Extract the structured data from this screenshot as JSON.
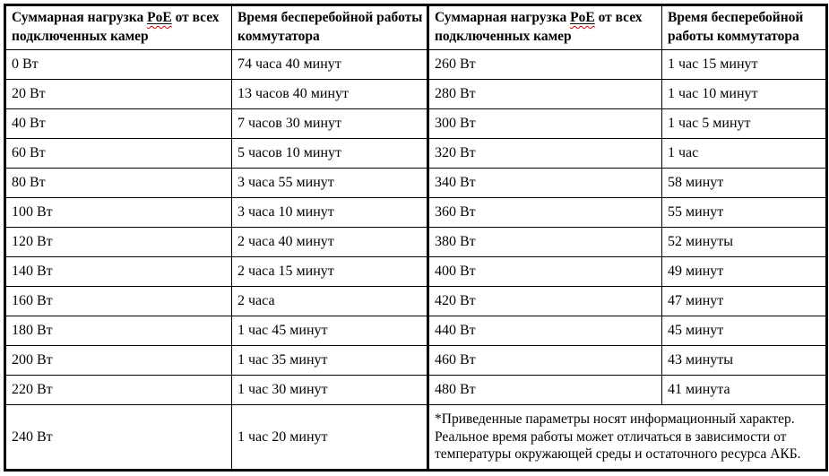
{
  "colors": {
    "ink": "#000000",
    "paper": "#ffffff",
    "spellcheck_squiggle": "#e00000"
  },
  "table": {
    "headers": {
      "load_prefix": "Суммарная нагрузка ",
      "load_term": "PoE",
      "load_suffix": " от всех\nподключенных камер",
      "uptime_left": "Время бесперебойной работы\nкоммутатора",
      "uptime_right": "Время бесперебойной\nработы коммутатора"
    },
    "rows": [
      {
        "l_load": "0 Вт",
        "l_time": "74 часа 40 минут",
        "r_load": "260 Вт",
        "r_time": "1 час 15 минут"
      },
      {
        "l_load": "20 Вт",
        "l_time": "13 часов 40 минут",
        "r_load": "280 Вт",
        "r_time": "1 час 10 минут"
      },
      {
        "l_load": "40 Вт",
        "l_time": "7 часов 30 минут",
        "r_load": "300 Вт",
        "r_time": "1 час 5 минут"
      },
      {
        "l_load": "60 Вт",
        "l_time": "5 часов 10 минут",
        "r_load": "320 Вт",
        "r_time": "1 час"
      },
      {
        "l_load": "80 Вт",
        "l_time": "3 часа 55 минут",
        "r_load": "340 Вт",
        "r_time": "58 минут"
      },
      {
        "l_load": "100 Вт",
        "l_time": "3 часа 10 минут",
        "r_load": "360 Вт",
        "r_time": "55 минут"
      },
      {
        "l_load": "120 Вт",
        "l_time": "2 часа 40 минут",
        "r_load": "380 Вт",
        "r_time": "52 минуты"
      },
      {
        "l_load": "140 Вт",
        "l_time": "2 часа 15 минут",
        "r_load": "400 Вт",
        "r_time": "49 минут"
      },
      {
        "l_load": "160 Вт",
        "l_time": "2 часа",
        "r_load": "420 Вт",
        "r_time": "47 минут"
      },
      {
        "l_load": "180 Вт",
        "l_time": "1 час 45 минут",
        "r_load": "440 Вт",
        "r_time": "45 минут"
      },
      {
        "l_load": "200 Вт",
        "l_time": "1 час 35 минут",
        "r_load": "460 Вт",
        "r_time": "43 минуты"
      },
      {
        "l_load": "220 Вт",
        "l_time": "1 час 30 минут",
        "r_load": "480 Вт",
        "r_time": "41 минута"
      }
    ],
    "last_row": {
      "load": "240 Вт",
      "time": "1 час 20 минут"
    },
    "footnote": "*Приведенные параметры носят информационный характер. Реальное время работы может отличаться в зависимости от температуры окружающей среды и остаточного ресурса АКБ."
  }
}
